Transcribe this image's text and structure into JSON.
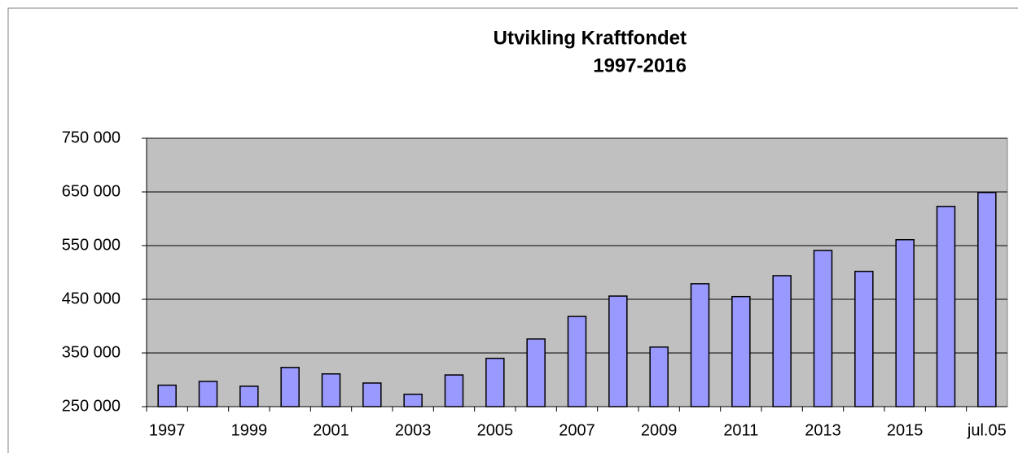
{
  "chart_data": {
    "type": "bar",
    "title": [
      "Utvikling Kraftfondet",
      "1997-2016"
    ],
    "categories": [
      "1997",
      null,
      "1999",
      null,
      "2001",
      null,
      "2003",
      null,
      "2005",
      null,
      "2007",
      null,
      "2009",
      null,
      "2011",
      null,
      "2013",
      null,
      "2015",
      null,
      "jul.05"
    ],
    "values": [
      290000,
      297000,
      288000,
      323000,
      311000,
      294000,
      273000,
      309000,
      340000,
      376000,
      418000,
      456000,
      361000,
      479000,
      455000,
      494000,
      541000,
      502000,
      561000,
      623000,
      649000
    ],
    "color": "#9999ff",
    "ylim": [
      250000,
      750000
    ],
    "yticks": [
      {
        "value": 250000,
        "label": "250 000"
      },
      {
        "value": 350000,
        "label": "350 000"
      },
      {
        "value": 450000,
        "label": "450 000"
      },
      {
        "value": 550000,
        "label": "550 000"
      },
      {
        "value": 650000,
        "label": "650 000"
      },
      {
        "value": 750000,
        "label": "750 000"
      }
    ],
    "grid": true
  }
}
